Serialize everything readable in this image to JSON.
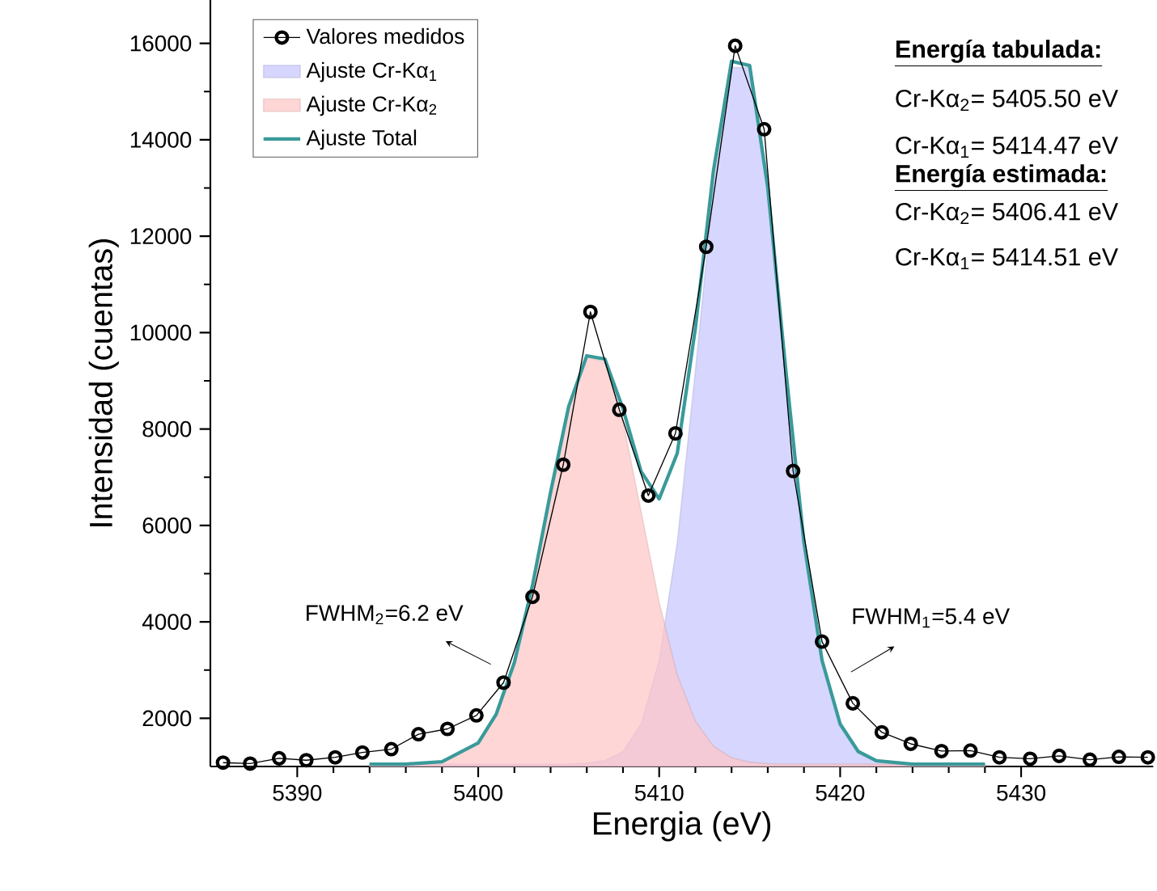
{
  "chart_data": {
    "type": "line",
    "xlabel": "Energia (eV)",
    "ylabel": "Intensidad (cuentas)",
    "xlim": [
      5385.2,
      5437.3
    ],
    "ylim": [
      1000,
      16900
    ],
    "xticks": [
      5390,
      5400,
      5410,
      5420,
      5430
    ],
    "yticks": [
      2000,
      4000,
      6000,
      8000,
      10000,
      12000,
      14000,
      16000
    ],
    "legend": "top left",
    "annotations": [
      "**Energía tabulada:**",
      "Cr-Kα$_{2}$= 5405.50 eV",
      "Cr-Kα$_{1}$= 5414.47 eV",
      "**Energía estimada:**",
      "Cr-Kα$_{2}$= 5406.41 eV",
      "Cr-Kα$_{1}$= 5414.51 eV",
      "FWHM$_{2}$=6.2 eV",
      "FWHM$_{1}$=5.4 eV"
    ],
    "series": [
      {
        "name": "Valores medidos",
        "marker": "circle",
        "color": "#000000",
        "x": [
          5385.9,
          5387.4,
          5389.0,
          5390.5,
          5392.1,
          5393.6,
          5395.2,
          5396.7,
          5398.3,
          5399.9,
          5401.4,
          5403.0,
          5404.7,
          5406.2,
          5407.8,
          5409.4,
          5410.9,
          5412.6,
          5414.2,
          5415.8,
          5417.4,
          5419.0,
          5420.7,
          5422.3,
          5423.9,
          5425.6,
          5427.2,
          5428.8,
          5430.5,
          5432.1,
          5433.8,
          5435.4,
          5437.0
        ],
        "values": [
          1080,
          1060,
          1170,
          1130,
          1190,
          1290,
          1360,
          1670,
          1780,
          2060,
          2740,
          4520,
          7260,
          10430,
          8400,
          6620,
          7910,
          11780,
          15950,
          14220,
          7130,
          3590,
          2310,
          1710,
          1470,
          1320,
          1330,
          1190,
          1160,
          1220,
          1140,
          1200,
          1190
        ]
      },
      {
        "name": "Ajuste Cr-Kα$_{1}$",
        "type": "area",
        "color": "#c4c4ff",
        "x": [
          5394,
          5396,
          5398,
          5400,
          5401,
          5402,
          5403,
          5404,
          5405,
          5406,
          5407,
          5408,
          5409,
          5410,
          5411,
          5412,
          5413,
          5414,
          5415,
          5416,
          5417,
          5418,
          5419,
          5420,
          5421,
          5422,
          5424,
          5428
        ],
        "values": [
          1050,
          1050,
          1050,
          1050,
          1050,
          1050,
          1050,
          1050,
          1050,
          1070,
          1120,
          1310,
          1880,
          3200,
          5650,
          9210,
          12990,
          15500,
          15500,
          12990,
          9210,
          5650,
          3200,
          1880,
          1310,
          1120,
          1050,
          1050
        ]
      },
      {
        "name": "Ajuste Cr-Kα$_{2}$",
        "type": "area",
        "color": "#ffc4c4",
        "x": [
          5394,
          5396,
          5398,
          5400,
          5401,
          5402,
          5403,
          5404,
          5405,
          5406,
          5407,
          5408,
          5409,
          5410,
          5411,
          5412,
          5413,
          5414,
          5415,
          5416,
          5417,
          5418,
          5419,
          5420,
          5421,
          5422,
          5424,
          5428
        ],
        "values": [
          1050,
          1050,
          1100,
          1490,
          2090,
          3160,
          4760,
          6690,
          8470,
          9500,
          9380,
          8160,
          6290,
          4400,
          2900,
          1940,
          1420,
          1180,
          1090,
          1060,
          1050,
          1050,
          1050,
          1050,
          1050,
          1050,
          1050,
          1050
        ]
      },
      {
        "name": "Ajuste Total",
        "marker": "none",
        "color": "#3a9a9a",
        "x": [
          5394,
          5396,
          5398,
          5400,
          5401,
          5402,
          5403,
          5404,
          5405,
          5406,
          5407,
          5408,
          5409,
          5410,
          5411,
          5412,
          5413,
          5414,
          5415,
          5416,
          5417,
          5418,
          5419,
          5420,
          5421,
          5422,
          5424,
          5428
        ],
        "values": [
          1050,
          1050,
          1100,
          1490,
          2090,
          3160,
          4760,
          6690,
          8470,
          9520,
          9450,
          8420,
          7120,
          6550,
          7500,
          10090,
          13360,
          15630,
          15540,
          13010,
          9210,
          5650,
          3200,
          1880,
          1310,
          1120,
          1050,
          1050
        ]
      }
    ]
  }
}
